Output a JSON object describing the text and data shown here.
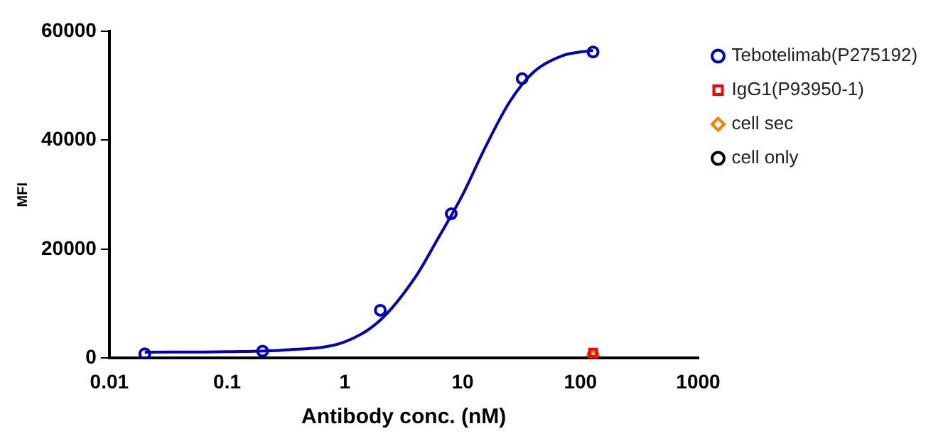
{
  "chart_data": {
    "type": "scatter",
    "xlabel": "Antibody conc. (nM)",
    "ylabel": "MFI",
    "log": "x",
    "xlim": [
      0.01,
      1000
    ],
    "xticks": [
      0.01,
      0.1,
      1,
      10,
      100,
      1000
    ],
    "ylim": [
      0,
      60000
    ],
    "yticks": [
      0,
      20000,
      40000,
      60000
    ],
    "grid": false,
    "legend": "right",
    "series": [
      {
        "name": "Tebotelimab(P275192)",
        "color": "#0000c0",
        "marker": "circle",
        "x": [
          0.02,
          0.2,
          2,
          8,
          32,
          128
        ],
        "values": [
          800,
          1300,
          8800,
          26500,
          51300,
          56200
        ]
      },
      {
        "name": "IgG1(P93950-1)",
        "color": "#ff0000",
        "marker": "square",
        "x": [
          128
        ],
        "values": [
          1000
        ]
      },
      {
        "name": "cell sec",
        "color": "#ff8000",
        "marker": "diamond",
        "x": [
          128
        ],
        "values": [
          500
        ]
      },
      {
        "name": "cell only",
        "color": "#000000",
        "marker": "circle",
        "x": [
          128
        ],
        "values": [
          400
        ]
      },
      {
        "type": "line",
        "color": "#0000c0",
        "marker": "none",
        "x": [
          0.02,
          0.1,
          0.3,
          1,
          2,
          4,
          6,
          10,
          15,
          25,
          40,
          70,
          128
        ],
        "values": [
          1100,
          1200,
          1500,
          3000,
          7000,
          15000,
          21500,
          30000,
          38000,
          47000,
          52500,
          55500,
          56500
        ]
      }
    ]
  }
}
